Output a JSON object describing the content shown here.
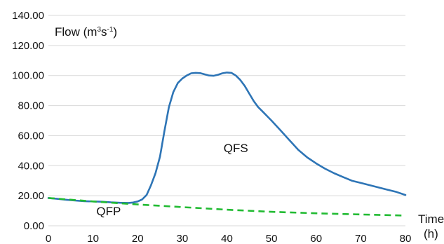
{
  "chart_data": {
    "type": "line",
    "ylabel": {
      "base": "Flow (m",
      "sup1": "3",
      "mid": "s",
      "sup2": "-1",
      "end": ")"
    },
    "xlabel": {
      "line1": "Time",
      "line2": "(h)"
    },
    "xlim": [
      0,
      80
    ],
    "ylim": [
      0,
      140
    ],
    "xticks": [
      "0",
      "10",
      "20",
      "30",
      "40",
      "50",
      "60",
      "70",
      "80"
    ],
    "yticks": [
      "0.00",
      "20.00",
      "40.00",
      "60.00",
      "80.00",
      "100.00",
      "120.00",
      "140.00"
    ],
    "grid": "horizontal",
    "annotations": [
      {
        "text": "QFS",
        "x": 42,
        "y": 49
      },
      {
        "text": "QFP",
        "x": 13.5,
        "y": 7
      }
    ],
    "colors": {
      "QFS": "#2e75b6",
      "QFP": "#22bb33",
      "grid": "#d9d9d9"
    },
    "series": [
      {
        "label": "QFS",
        "style": "solid",
        "x": [
          0,
          2,
          4,
          6,
          8,
          10,
          12,
          14,
          16,
          18,
          19,
          20,
          21,
          22,
          23,
          24,
          25,
          26,
          27,
          28,
          29,
          30,
          31,
          32,
          33,
          34,
          35,
          36,
          37,
          38,
          39,
          40,
          41,
          42,
          43,
          44,
          45,
          46,
          47,
          48,
          50,
          52,
          54,
          56,
          58,
          60,
          62,
          64,
          66,
          68,
          70,
          72,
          74,
          76,
          78,
          80
        ],
        "y": [
          18.5,
          17.9,
          17.3,
          16.8,
          16.4,
          16.2,
          16,
          15.6,
          15.3,
          15.2,
          15.5,
          16.2,
          17.5,
          20.5,
          27,
          35,
          46,
          63,
          79,
          89,
          95,
          98,
          100,
          101.5,
          101.8,
          101.6,
          100.8,
          100,
          99.8,
          100.5,
          101.5,
          102,
          101.8,
          100,
          97,
          93,
          88,
          83,
          79,
          76,
          70,
          63.5,
          57,
          50.5,
          45.5,
          41.5,
          38,
          35,
          32.5,
          30,
          28.5,
          27,
          25.5,
          24,
          22.5,
          20.5
        ]
      },
      {
        "label": "QFP",
        "style": "dashed",
        "x": [
          0,
          10,
          20,
          30,
          40,
          50,
          60,
          70,
          80
        ],
        "y": [
          18.5,
          16.2,
          14.2,
          12.4,
          10.7,
          9.3,
          8.3,
          7.5,
          6.8
        ]
      }
    ]
  }
}
